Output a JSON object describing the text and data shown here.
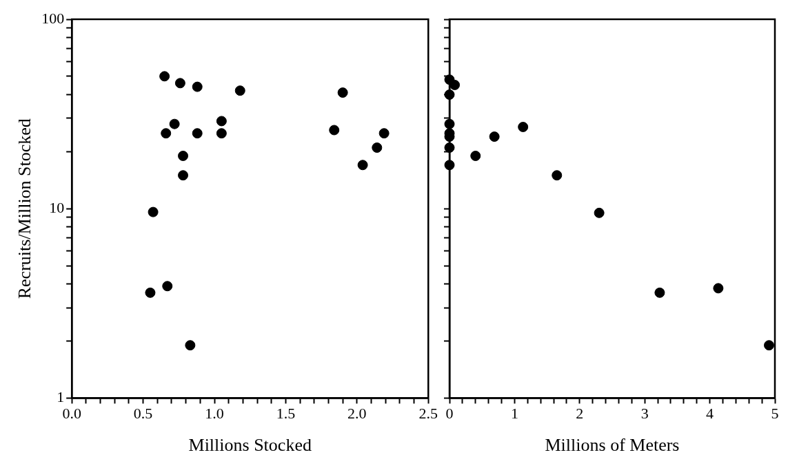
{
  "chart_data": [
    {
      "type": "scatter",
      "xlabel": "Millions Stocked",
      "ylabel": "Recruits/Million Stocked",
      "log": "y",
      "grid": false,
      "legend": false,
      "marker": "circle",
      "xlim": [
        0,
        2.5
      ],
      "xticks": [
        {
          "value": 0,
          "label": "0.0"
        },
        {
          "value": 0.1,
          "label": null
        },
        {
          "value": 0.2,
          "label": null
        },
        {
          "value": 0.3,
          "label": null
        },
        {
          "value": 0.4,
          "label": null
        },
        0.5,
        {
          "value": 0.6,
          "label": null
        },
        {
          "value": 0.7,
          "label": null
        },
        {
          "value": 0.8,
          "label": null
        },
        {
          "value": 0.9,
          "label": null
        },
        {
          "value": 1,
          "label": "1.0"
        },
        {
          "value": 1.1,
          "label": null
        },
        {
          "value": 1.2,
          "label": null
        },
        {
          "value": 1.3,
          "label": null
        },
        {
          "value": 1.4,
          "label": null
        },
        1.5,
        {
          "value": 1.6,
          "label": null
        },
        {
          "value": 1.7,
          "label": null
        },
        {
          "value": 1.8,
          "label": null
        },
        {
          "value": 1.9,
          "label": null
        },
        {
          "value": 2,
          "label": "2.0"
        },
        {
          "value": 2.1,
          "label": null
        },
        {
          "value": 2.2,
          "label": null
        },
        {
          "value": 2.3,
          "label": null
        },
        {
          "value": 2.4,
          "label": null
        },
        2.5
      ],
      "ylim": [
        1,
        100
      ],
      "yticks": [
        1,
        {
          "value": 2,
          "label": null
        },
        {
          "value": 3,
          "label": null
        },
        {
          "value": 4,
          "label": null
        },
        {
          "value": 5,
          "label": null
        },
        {
          "value": 6,
          "label": null
        },
        {
          "value": 7,
          "label": null
        },
        {
          "value": 8,
          "label": null
        },
        {
          "value": 9,
          "label": null
        },
        10,
        {
          "value": 20,
          "label": null
        },
        {
          "value": 30,
          "label": null
        },
        {
          "value": 40,
          "label": null
        },
        {
          "value": 50,
          "label": null
        },
        {
          "value": 60,
          "label": null
        },
        {
          "value": 70,
          "label": null
        },
        {
          "value": 80,
          "label": null
        },
        {
          "value": 90,
          "label": null
        },
        100
      ],
      "series": [
        {
          "color": "#000000",
          "x": [
            0.65,
            0.76,
            0.88,
            1.18,
            1.9,
            0.72,
            0.66,
            0.88,
            1.05,
            1.05,
            1.84,
            2.19,
            2.14,
            2.04,
            0.78,
            0.78,
            0.57,
            0.55,
            0.67,
            0.83
          ],
          "values": [
            50,
            46,
            44,
            42,
            41,
            28,
            25,
            25,
            29,
            25,
            26,
            25,
            21,
            17,
            19,
            15,
            9.6,
            3.6,
            3.9,
            1.9
          ]
        }
      ]
    },
    {
      "type": "scatter",
      "xlabel": "Millions of Meters",
      "log": "y",
      "grid": false,
      "legend": false,
      "marker": "circle",
      "tick_labels": "x",
      "xlim": [
        0,
        5
      ],
      "xticks": [
        0,
        {
          "value": 0.2,
          "label": null
        },
        {
          "value": 0.4,
          "label": null
        },
        {
          "value": 0.6,
          "label": null
        },
        {
          "value": 0.8,
          "label": null
        },
        1,
        {
          "value": 1.2,
          "label": null
        },
        {
          "value": 1.4,
          "label": null
        },
        {
          "value": 1.6,
          "label": null
        },
        {
          "value": 1.8,
          "label": null
        },
        2,
        {
          "value": 2.2,
          "label": null
        },
        {
          "value": 2.4,
          "label": null
        },
        {
          "value": 2.6,
          "label": null
        },
        {
          "value": 2.8,
          "label": null
        },
        3,
        {
          "value": 3.2,
          "label": null
        },
        {
          "value": 3.4,
          "label": null
        },
        {
          "value": 3.6,
          "label": null
        },
        {
          "value": 3.8,
          "label": null
        },
        4,
        {
          "value": 4.2,
          "label": null
        },
        {
          "value": 4.4,
          "label": null
        },
        {
          "value": 4.6,
          "label": null
        },
        {
          "value": 4.8,
          "label": null
        },
        5
      ],
      "ylim": [
        1,
        100
      ],
      "yticks": [
        1,
        {
          "value": 2,
          "label": null
        },
        {
          "value": 3,
          "label": null
        },
        {
          "value": 4,
          "label": null
        },
        {
          "value": 5,
          "label": null
        },
        {
          "value": 6,
          "label": null
        },
        {
          "value": 7,
          "label": null
        },
        {
          "value": 8,
          "label": null
        },
        {
          "value": 9,
          "label": null
        },
        10,
        {
          "value": 20,
          "label": null
        },
        {
          "value": 30,
          "label": null
        },
        {
          "value": 40,
          "label": null
        },
        {
          "value": 50,
          "label": null
        },
        {
          "value": 60,
          "label": null
        },
        {
          "value": 70,
          "label": null
        },
        {
          "value": 80,
          "label": null
        },
        {
          "value": 90,
          "label": null
        },
        100
      ],
      "series": [
        {
          "color": "#000000",
          "x": [
            0,
            0.08,
            0,
            0,
            0,
            0,
            0,
            0,
            0.4,
            0.69,
            1.13,
            1.65,
            2.3,
            3.23,
            4.13,
            4.91
          ],
          "values": [
            48,
            45,
            40,
            28,
            25,
            24,
            21,
            17,
            19,
            24,
            27,
            15,
            9.5,
            3.6,
            3.8,
            1.9
          ]
        }
      ]
    }
  ]
}
